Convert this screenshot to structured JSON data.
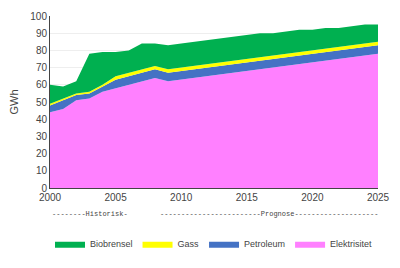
{
  "chart_data": {
    "type": "area",
    "stacked": true,
    "x": [
      2000,
      2001,
      2002,
      2003,
      2004,
      2005,
      2006,
      2007,
      2008,
      2009,
      2010,
      2011,
      2012,
      2013,
      2014,
      2015,
      2016,
      2017,
      2018,
      2019,
      2020,
      2021,
      2022,
      2023,
      2024,
      2025
    ],
    "series": [
      {
        "name": "Elektrisitet",
        "color": "#FF80FF",
        "values": [
          44,
          46,
          51,
          52,
          56,
          58,
          60,
          62,
          64,
          62,
          63,
          64,
          65,
          66,
          67,
          68,
          69,
          70,
          71,
          72,
          73,
          74,
          75,
          76,
          77,
          78
        ]
      },
      {
        "name": "Petroleum",
        "color": "#4472C4",
        "values": [
          4,
          5,
          3,
          3,
          3,
          5,
          5,
          5,
          5,
          5,
          5,
          5,
          5,
          5,
          5,
          5,
          5,
          5,
          5,
          5,
          5,
          5,
          5,
          5,
          5,
          5
        ]
      },
      {
        "name": "Gass",
        "color": "#FFFF00",
        "values": [
          1,
          1,
          1,
          1,
          1,
          2,
          2,
          2,
          2,
          2,
          2,
          2,
          2,
          2,
          2,
          2,
          2,
          2,
          2,
          2,
          2,
          2,
          2,
          2,
          2,
          2
        ]
      },
      {
        "name": "Biobrensel",
        "color": "#00B050",
        "values": [
          11,
          7,
          7,
          22,
          19,
          14,
          13,
          15,
          13,
          14,
          14,
          14,
          14,
          14,
          14,
          14,
          14,
          13,
          13,
          13,
          12,
          12,
          11,
          11,
          11,
          10
        ]
      }
    ],
    "ylabel": "GWh",
    "xlim": [
      2000,
      2025
    ],
    "xticks": [
      2000,
      2005,
      2010,
      2015,
      2020,
      2025
    ],
    "ylim": [
      0,
      100
    ],
    "yticks": [
      0,
      10,
      20,
      30,
      40,
      50,
      60,
      70,
      80,
      90,
      100
    ],
    "grid": true,
    "legend": "bottom",
    "annotations": [
      "--------Historisk-",
      "------------------------Prognose--------------------"
    ]
  }
}
